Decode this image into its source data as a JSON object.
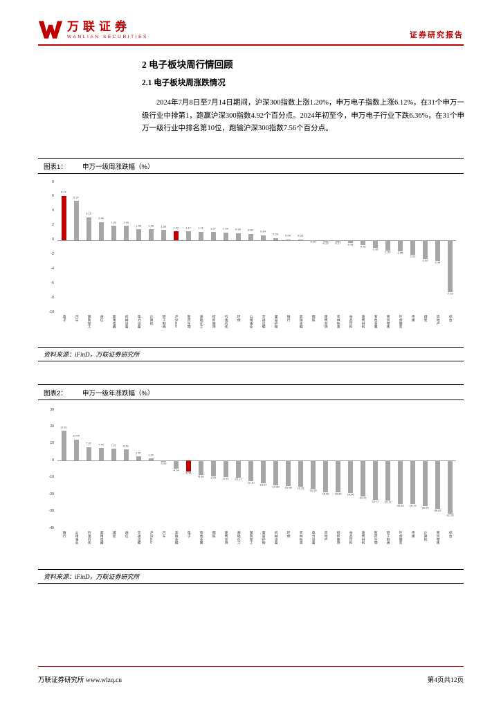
{
  "header": {
    "logo_cn": "万联证券",
    "logo_en": "WANLIAN SECURITIES",
    "report_type": "证券研究报告"
  },
  "content": {
    "section_title": "2  电子板块周行情回顾",
    "subsection_title": "2.1 电子板块周涨跌情况",
    "paragraph": "2024年7月8日至7月14日期间，沪深300指数上涨1.20%，申万电子指数上涨6.12%，在31个申万一级行业中排第1，跑赢沪深300指数4.92个百分点。2024年初至今，申万电子行业下跌6.36%，在31个申万一级行业中排名第10位，跑输沪深300指数7.56个百分点。"
  },
  "figures": [
    {
      "label": "图表1：",
      "source": "资料来源：iFinD，万联证券研究所"
    },
    {
      "label": "图表2：",
      "source": "资料来源：iFinD，万联证券研究所"
    }
  ],
  "footer": {
    "left": "万联证券研究所  www.wlzq.cn",
    "right": "第4页共12页"
  },
  "colors": {
    "brand_red": "#c00000",
    "bar_gray": "#a6a6a6",
    "highlight_red": "#c00000"
  },
  "chart_data": [
    {
      "type": "bar",
      "title": "申万一级周涨跌幅（%）",
      "categories": [
        "电子",
        "汽车",
        "国防军工",
        "通信",
        "家用电器",
        "机械设备",
        "电力设备",
        "计算机",
        "轻工制造",
        "沪深300",
        "医药生物",
        "基础化工",
        "纺织服饰",
        "石油石化",
        "环保",
        "公用事业",
        "交通运输",
        "美容护理",
        "银行",
        "非银金融",
        "钢铁",
        "建筑装饰",
        "农林牧渔",
        "食品饮料",
        "建筑材料",
        "有色金属",
        "商贸零售",
        "社会服务",
        "传媒",
        "煤炭",
        "房地产",
        "综合"
      ],
      "values": [
        6.12,
        5.37,
        3.15,
        2.46,
        1.93,
        1.93,
        1.48,
        1.48,
        1.38,
        1.2,
        1.17,
        1.11,
        1.07,
        1.04,
        0.93,
        0.82,
        0.64,
        0.25,
        0.09,
        0.05,
        -0.09,
        -0.23,
        -0.27,
        -0.43,
        -0.75,
        -1.05,
        -1.5,
        -1.55,
        -2.02,
        -2.62,
        -2.94,
        -7.19
      ],
      "highlight_indexes": [
        0,
        9
      ],
      "ylim": [
        -10,
        8
      ],
      "yticks": [
        8,
        6,
        4,
        2,
        0,
        -2,
        -4,
        -6,
        -8,
        -10
      ],
      "grid": false,
      "legend": "none",
      "xlabel": "",
      "ylabel": ""
    },
    {
      "type": "bar",
      "title": "申万一级年涨跌幅（%）",
      "categories": [
        "银行",
        "公用事业",
        "石油石化",
        "家用电器",
        "煤炭",
        "通信",
        "交通运输",
        "沪深300",
        "汽车",
        "非银金融",
        "电子",
        "有色金属",
        "钢铁",
        "建筑装饰",
        "基础化工",
        "国防军工",
        "美容护理",
        "机械设备",
        "环保",
        "农林牧渔",
        "电力设备",
        "房地产",
        "纺织服饰",
        "食品饮料",
        "建筑材料",
        "医药生物",
        "轻工制造",
        "社会服务",
        "传媒",
        "计算机",
        "商贸零售",
        "综合"
      ],
      "values": [
        17.61,
        12.44,
        7.97,
        7.4,
        7.07,
        6.6,
        2.57,
        1.2,
        -0.69,
        -4.74,
        -6.36,
        -8.39,
        -9.47,
        -9.91,
        -10.17,
        -12.1,
        -13.27,
        -14.69,
        -15.08,
        -15.55,
        -16.55,
        -18.6,
        -18.8,
        -19.06,
        -21.27,
        -23.07,
        -23.72,
        -25.63,
        -25.79,
        -26.99,
        -28.62,
        -31.55
      ],
      "highlight_indexes": [
        10
      ],
      "ylim": [
        -40,
        30
      ],
      "yticks": [
        30,
        20,
        10,
        0,
        -10,
        -20,
        -30,
        -40
      ],
      "grid": false,
      "legend": "none",
      "xlabel": "",
      "ylabel": ""
    }
  ]
}
